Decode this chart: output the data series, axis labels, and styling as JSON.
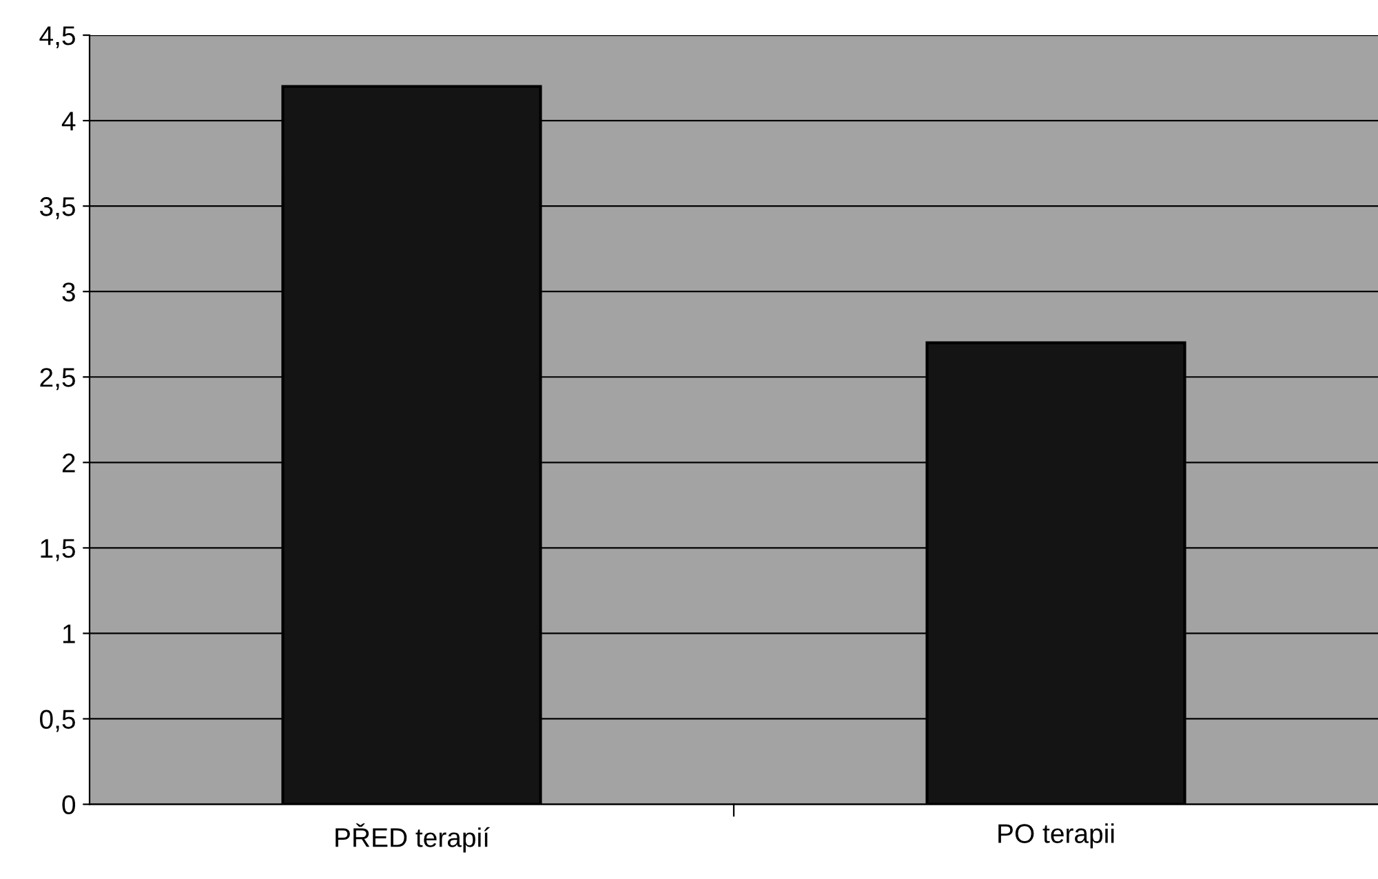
{
  "chart_data": {
    "type": "bar",
    "categories": [
      "PŘED terapií",
      "PO terapii"
    ],
    "values": [
      4.2,
      2.7
    ],
    "color": "#141414",
    "ylim": [
      0,
      4.5
    ],
    "yticks": [
      0,
      {
        "value": 0.5,
        "label": "0,5"
      },
      1,
      {
        "value": 1.5,
        "label": "1,5"
      },
      2,
      {
        "value": 2.5,
        "label": "2,5"
      },
      3,
      {
        "value": 3.5,
        "label": "3,5"
      },
      4,
      {
        "value": 4.5,
        "label": "4,5"
      }
    ],
    "grid": "y",
    "legend": false
  }
}
